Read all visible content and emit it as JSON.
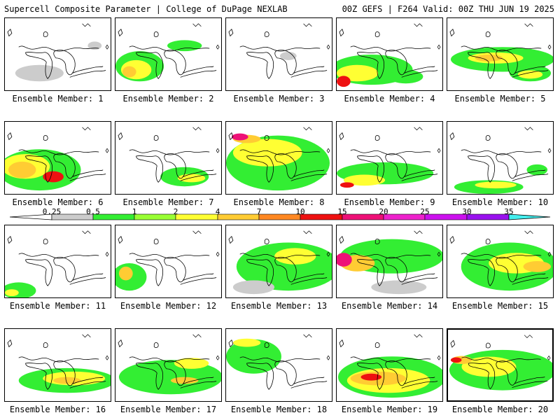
{
  "header": {
    "left": "Supercell Composite Parameter | College of DuPage NEXLAB",
    "right": "00Z GEFS | F264 Valid: 00Z THU JUN 19 2025"
  },
  "colorbar": {
    "labels": [
      "0.25",
      "0.5",
      "1",
      "2",
      "4",
      "7",
      "10",
      "15",
      "20",
      "25",
      "30",
      "35"
    ],
    "colors": [
      "#cccccc",
      "#33ee33",
      "#99ff33",
      "#ffff33",
      "#ffcc33",
      "#ff8822",
      "#ee1111",
      "#ee1177",
      "#ee22cc",
      "#cc11ee",
      "#9911ee",
      "#aa66ff",
      "#44eeee"
    ]
  },
  "members": [
    {
      "label": "Ensemble Member: 1"
    },
    {
      "label": "Ensemble Member: 2"
    },
    {
      "label": "Ensemble Member: 3"
    },
    {
      "label": "Ensemble Member: 4"
    },
    {
      "label": "Ensemble Member: 5"
    },
    {
      "label": "Ensemble Member: 6"
    },
    {
      "label": "Ensemble Member: 7"
    },
    {
      "label": "Ensemble Member: 8"
    },
    {
      "label": "Ensemble Member: 9"
    },
    {
      "label": "Ensemble Member: 10"
    },
    {
      "label": "Ensemble Member: 11"
    },
    {
      "label": "Ensemble Member: 12"
    },
    {
      "label": "Ensemble Member: 13"
    },
    {
      "label": "Ensemble Member: 14"
    },
    {
      "label": "Ensemble Member: 15"
    },
    {
      "label": "Ensemble Member: 16"
    },
    {
      "label": "Ensemble Member: 17"
    },
    {
      "label": "Ensemble Member: 18"
    },
    {
      "label": "Ensemble Member: 19"
    },
    {
      "label": "Ensemble Member: 20"
    }
  ],
  "selected_member": "Ensemble Member: 20"
}
